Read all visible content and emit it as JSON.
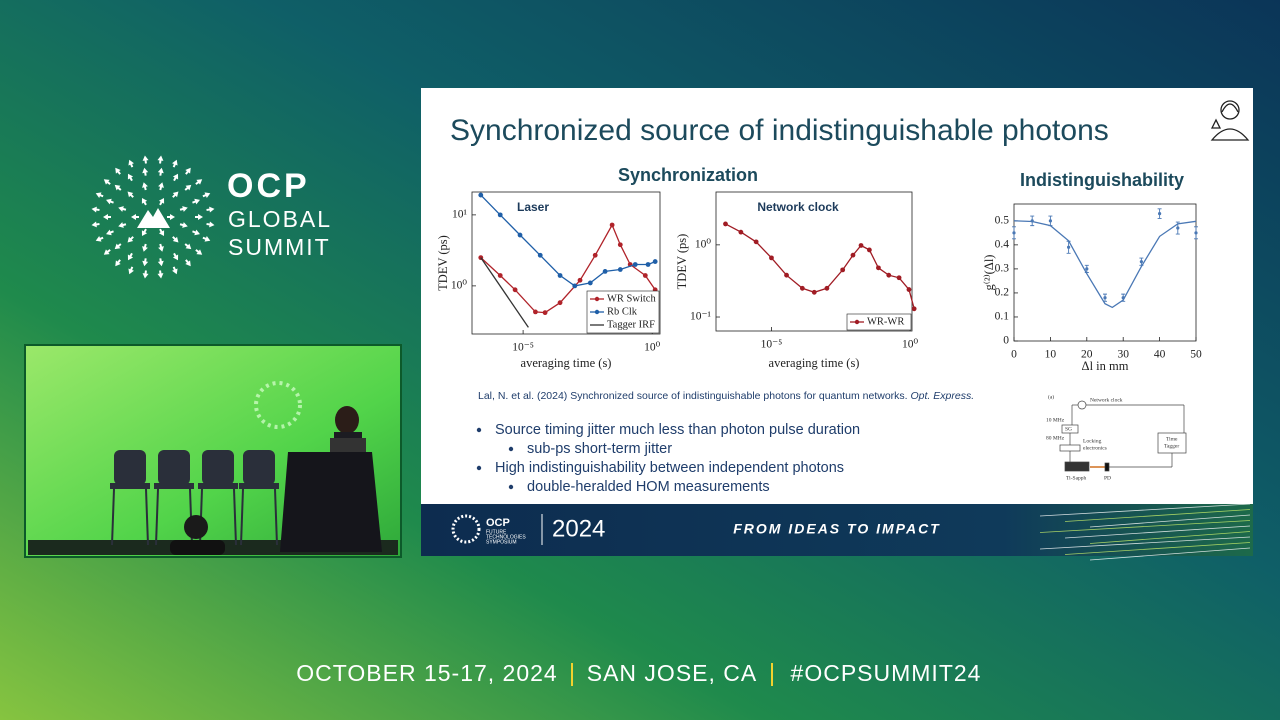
{
  "branding": {
    "logo": "OCP",
    "line1": "GLOBAL",
    "line2": "SUMMIT"
  },
  "slide": {
    "title": "Synchronized source of indistinguishable  photons",
    "sections": [
      "Synchronization",
      "Indistinguishability"
    ],
    "citation": {
      "text": "Lal, N. et al. (2024) Synchronized source of indistinguishable photons for quantum networks. ",
      "journal": "Opt. Express."
    },
    "bullets": [
      {
        "text": "Source timing jitter much less than photon pulse duration",
        "level": 1
      },
      {
        "text": "sub-ps short-term jitter",
        "level": 2
      },
      {
        "text": "High indistinguishability between independent photons",
        "level": 1
      },
      {
        "text": "double-heralded HOM measurements",
        "level": 2
      }
    ],
    "diagram": {
      "labels": [
        "(a)",
        "Network clock",
        "10 MHz",
        "SG",
        "80 MHz",
        "Locking",
        "electronics",
        "Time",
        "Tagger",
        "Ti-Sapph",
        "PD"
      ]
    },
    "footer": {
      "logo": "OCP",
      "symposium_lines": [
        "FUTURE",
        "TECHNOLOGIES",
        "SYMPOSIUM"
      ],
      "year": "2024",
      "tagline": "FROM IDEAS TO IMPACT"
    }
  },
  "chart_data": [
    {
      "type": "line",
      "title": "Laser",
      "x_label": "averaging time (s)",
      "y_label": "TDEV (ps)",
      "xscale": "log",
      "yscale": "log",
      "xlim": [
        1.05e-07,
        2.0
      ],
      "ylim": [
        0.21,
        21
      ],
      "xticks": [
        {
          "value": 1e-05,
          "label": "10⁻⁵"
        },
        {
          "value": 1,
          "label": "10⁰"
        }
      ],
      "yticks": [
        {
          "value": 1,
          "label": "10⁰"
        },
        {
          "value": 10,
          "label": "10¹"
        }
      ],
      "legend": "lower right",
      "series": [
        {
          "name": "WR Switch",
          "color": "#b0232a",
          "markers": true,
          "x": [
            2.3e-07,
            1.3e-06,
            4.9e-06,
            3e-05,
            7.1e-05,
            0.00027,
            0.0016,
            0.0062,
            0.028,
            0.058,
            0.14,
            0.54,
            1.3
          ],
          "values": [
            2.5,
            1.4,
            0.88,
            0.43,
            0.42,
            0.58,
            1.2,
            2.7,
            7.2,
            3.8,
            2.0,
            1.4,
            0.88
          ]
        },
        {
          "name": "Rb Clk",
          "color": "#1f5fa8",
          "markers": true,
          "x": [
            2.3e-07,
            1.3e-06,
            7.6e-06,
            4.6e-05,
            0.00027,
            0.001,
            0.004,
            0.015,
            0.058,
            0.22,
            0.69,
            1.3
          ],
          "values": [
            19,
            10,
            5.2,
            2.7,
            1.4,
            1.0,
            1.1,
            1.6,
            1.7,
            2.0,
            2.0,
            2.2
          ]
        },
        {
          "name": "Tagger IRF",
          "color": "#333333",
          "markers": false,
          "x": [
            2.3e-07,
            1.6e-05
          ],
          "values": [
            2.5,
            0.26
          ]
        }
      ]
    },
    {
      "type": "line",
      "title": "Network clock",
      "x_label": "averaging time (s)",
      "y_label": "TDEV (ps)",
      "xscale": "log",
      "yscale": "log",
      "xlim": [
        1e-07,
        1.17
      ],
      "ylim": [
        0.064,
        5.4
      ],
      "xticks": [
        {
          "value": 1e-05,
          "label": "10⁻⁵"
        },
        {
          "value": 1,
          "label": "10⁰"
        }
      ],
      "yticks": [
        {
          "value": 0.1,
          "label": "10⁻¹"
        },
        {
          "value": 1,
          "label": "10⁰"
        }
      ],
      "legend": "lower right",
      "series": [
        {
          "name": "WR-WR",
          "color": "#a01c24",
          "markers": true,
          "x": [
            2.2e-07,
            7.9e-07,
            2.8e-06,
            1e-05,
            3.5e-05,
            0.00013,
            0.00035,
            0.001,
            0.0037,
            0.0087,
            0.017,
            0.034,
            0.072,
            0.17,
            0.4,
            0.91,
            1.4
          ],
          "values": [
            1.95,
            1.5,
            1.1,
            0.66,
            0.38,
            0.25,
            0.22,
            0.25,
            0.45,
            0.72,
            0.98,
            0.85,
            0.48,
            0.38,
            0.35,
            0.24,
            0.13
          ]
        }
      ]
    },
    {
      "type": "scatter",
      "x_label": "Δl in mm",
      "y_label": "g⁽²⁾(Δl)",
      "xlim": [
        0,
        50
      ],
      "ylim": [
        0,
        0.57
      ],
      "xticks": [
        0,
        10,
        20,
        30,
        40,
        50
      ],
      "yticks": [
        0,
        0.1,
        0.2,
        0.3,
        0.4,
        0.5
      ],
      "series": [
        {
          "color": "#4a78b5",
          "markers": false,
          "x": [
            0,
            5,
            10,
            15,
            20,
            25,
            27,
            30,
            35,
            40,
            45,
            50
          ],
          "values": [
            0.5,
            0.497,
            0.48,
            0.417,
            0.28,
            0.155,
            0.14,
            0.17,
            0.31,
            0.435,
            0.487,
            0.498
          ]
        },
        {
          "color": "#4a78b5",
          "markers": true,
          "nolink": true,
          "x": [
            0,
            5,
            10,
            15,
            20,
            25,
            30,
            35,
            40,
            45,
            50
          ],
          "values": [
            0.45,
            0.5,
            0.5,
            0.39,
            0.3,
            0.18,
            0.18,
            0.33,
            0.53,
            0.47,
            0.45
          ],
          "errors": [
            0.025,
            0.02,
            0.02,
            0.025,
            0.015,
            0.015,
            0.015,
            0.015,
            0.02,
            0.025,
            0.025
          ]
        }
      ]
    }
  ],
  "event": {
    "dates": "OCTOBER 15-17, 2024",
    "location": "SAN JOSE, CA",
    "hashtag": "#OCPSUMMIT24"
  }
}
